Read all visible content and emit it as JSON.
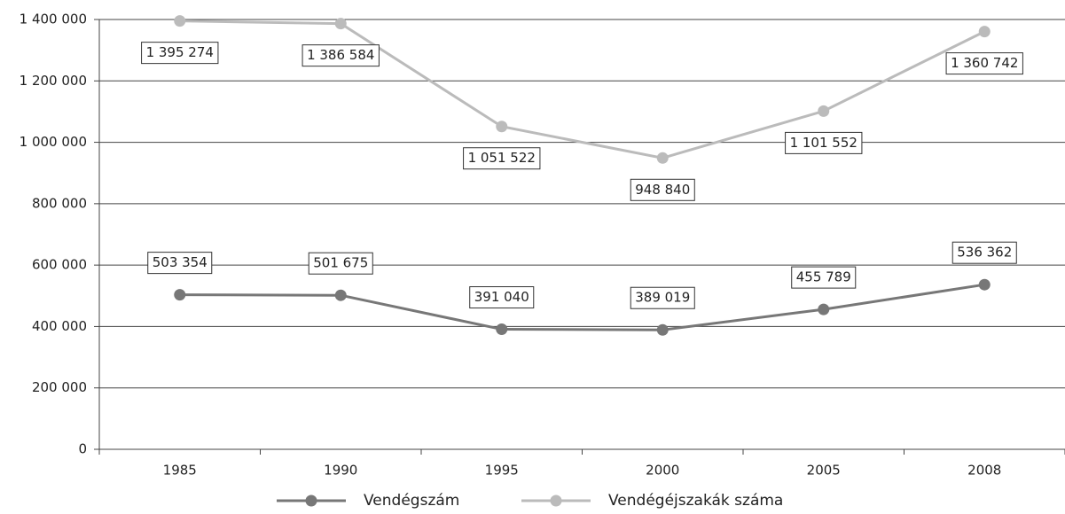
{
  "chart_data": {
    "type": "line",
    "categories": [
      "1985",
      "1990",
      "1995",
      "2000",
      "2005",
      "2008"
    ],
    "series": [
      {
        "name": "Vendégszám",
        "color": "#777777",
        "values": [
          503354,
          501675,
          391040,
          389019,
          455789,
          536362
        ],
        "value_labels": [
          "503 354",
          "501 675",
          "391 040",
          "389 019",
          "455 789",
          "536 362"
        ]
      },
      {
        "name": "Vendégéjszakák száma",
        "color": "#bbbbbb",
        "values": [
          1395274,
          1386584,
          1051522,
          948840,
          1101552,
          1360742
        ],
        "value_labels": [
          "1 395 274",
          "1 386 584",
          "1 051 522",
          "948 840",
          "1 101 552",
          "1 360 742"
        ]
      }
    ],
    "ylim": [
      0,
      1400000
    ],
    "yticks": [
      0,
      {
        "value": 200000,
        "label": "200 000"
      },
      {
        "value": 400000,
        "label": "400 000"
      },
      {
        "value": 600000,
        "label": "600 000"
      },
      {
        "value": 800000,
        "label": "800 000"
      },
      {
        "value": 1000000,
        "label": "1 000 000"
      },
      {
        "value": 1200000,
        "label": "1 200 000"
      },
      {
        "value": 1400000,
        "label": "1 400 000"
      }
    ],
    "grid": true,
    "legend": "bottom"
  }
}
